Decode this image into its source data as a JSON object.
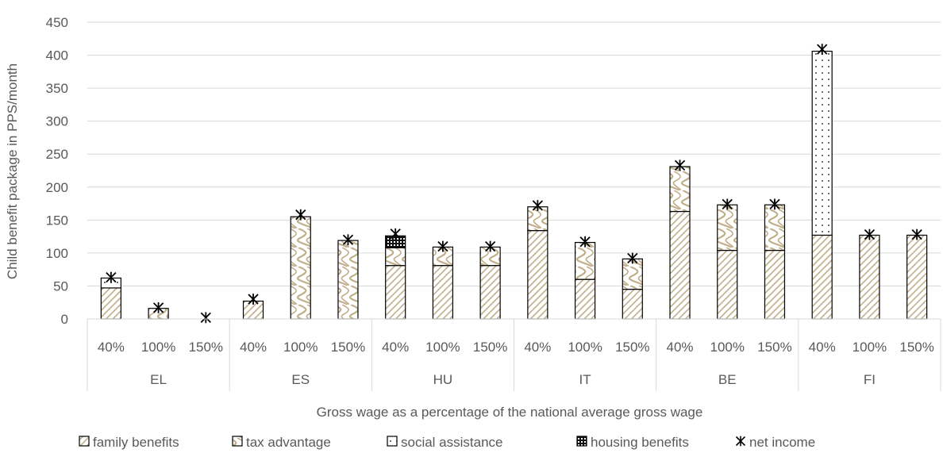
{
  "chart_data": {
    "type": "bar",
    "stacked": true,
    "ylabel": "Child benefit package in PPS/month",
    "xlabel": "Gross wage as a percentage of the national average gross wage",
    "ylim": [
      0,
      450
    ],
    "yticks": [
      "0",
      "50",
      "100",
      "150",
      "200",
      "250",
      "300",
      "350",
      "400",
      "450"
    ],
    "grid": true,
    "legend_position": "bottom",
    "groups": [
      {
        "label": "EL",
        "bars": [
          {
            "label": "40%",
            "family_benefits": 47,
            "tax_advantage": 0,
            "social_assistance": 15,
            "housing_benefits": 0,
            "net_income": 63
          },
          {
            "label": "100%",
            "family_benefits": 0,
            "tax_advantage": 16,
            "social_assistance": 0,
            "housing_benefits": 0,
            "net_income": 17
          },
          {
            "label": "150%",
            "family_benefits": 0,
            "tax_advantage": 0,
            "social_assistance": 0,
            "housing_benefits": 0,
            "net_income": 2
          }
        ]
      },
      {
        "label": "ES",
        "bars": [
          {
            "label": "40%",
            "family_benefits": 27,
            "tax_advantage": 0,
            "social_assistance": 0,
            "housing_benefits": 0,
            "net_income": 30
          },
          {
            "label": "100%",
            "family_benefits": 0,
            "tax_advantage": 155,
            "social_assistance": 0,
            "housing_benefits": 0,
            "net_income": 158
          },
          {
            "label": "150%",
            "family_benefits": 0,
            "tax_advantage": 119,
            "social_assistance": 0,
            "housing_benefits": 0,
            "net_income": 120
          }
        ]
      },
      {
        "label": "HU",
        "bars": [
          {
            "label": "40%",
            "family_benefits": 81,
            "tax_advantage": 27,
            "social_assistance": 0,
            "housing_benefits": 18,
            "net_income": 129
          },
          {
            "label": "100%",
            "family_benefits": 81,
            "tax_advantage": 28,
            "social_assistance": 0,
            "housing_benefits": 0,
            "net_income": 110
          },
          {
            "label": "150%",
            "family_benefits": 81,
            "tax_advantage": 28,
            "social_assistance": 0,
            "housing_benefits": 0,
            "net_income": 110
          }
        ]
      },
      {
        "label": "IT",
        "bars": [
          {
            "label": "40%",
            "family_benefits": 134,
            "tax_advantage": 36,
            "social_assistance": 0,
            "housing_benefits": 0,
            "net_income": 172
          },
          {
            "label": "100%",
            "family_benefits": 60,
            "tax_advantage": 56,
            "social_assistance": 0,
            "housing_benefits": 0,
            "net_income": 117
          },
          {
            "label": "150%",
            "family_benefits": 45,
            "tax_advantage": 46,
            "social_assistance": 0,
            "housing_benefits": 0,
            "net_income": 92
          }
        ]
      },
      {
        "label": "BE",
        "bars": [
          {
            "label": "40%",
            "family_benefits": 163,
            "tax_advantage": 68,
            "social_assistance": 0,
            "housing_benefits": 0,
            "net_income": 233
          },
          {
            "label": "100%",
            "family_benefits": 104,
            "tax_advantage": 69,
            "social_assistance": 0,
            "housing_benefits": 0,
            "net_income": 174
          },
          {
            "label": "150%",
            "family_benefits": 104,
            "tax_advantage": 69,
            "social_assistance": 0,
            "housing_benefits": 0,
            "net_income": 174
          }
        ]
      },
      {
        "label": "FI",
        "bars": [
          {
            "label": "40%",
            "family_benefits": 127,
            "tax_advantage": 0,
            "social_assistance": 279,
            "housing_benefits": 0,
            "net_income": 409
          },
          {
            "label": "100%",
            "family_benefits": 127,
            "tax_advantage": 0,
            "social_assistance": 0,
            "housing_benefits": 0,
            "net_income": 128
          },
          {
            "label": "150%",
            "family_benefits": 127,
            "tax_advantage": 0,
            "social_assistance": 0,
            "housing_benefits": 0,
            "net_income": 128
          }
        ]
      }
    ],
    "series": [
      {
        "key": "family_benefits",
        "name": "family benefits",
        "pattern": "diagonal-hatch",
        "color": "#c8b99a"
      },
      {
        "key": "tax_advantage",
        "name": "tax advantage",
        "pattern": "wavy",
        "color": "#c8b99a"
      },
      {
        "key": "social_assistance",
        "name": "social assistance",
        "pattern": "dotted",
        "color": "#404040"
      },
      {
        "key": "housing_benefits",
        "name": "housing benefits",
        "pattern": "checker",
        "color": "#1a1a1a"
      },
      {
        "key": "net_income",
        "name": "net income",
        "marker": "asterisk",
        "color": "#000000"
      }
    ]
  }
}
